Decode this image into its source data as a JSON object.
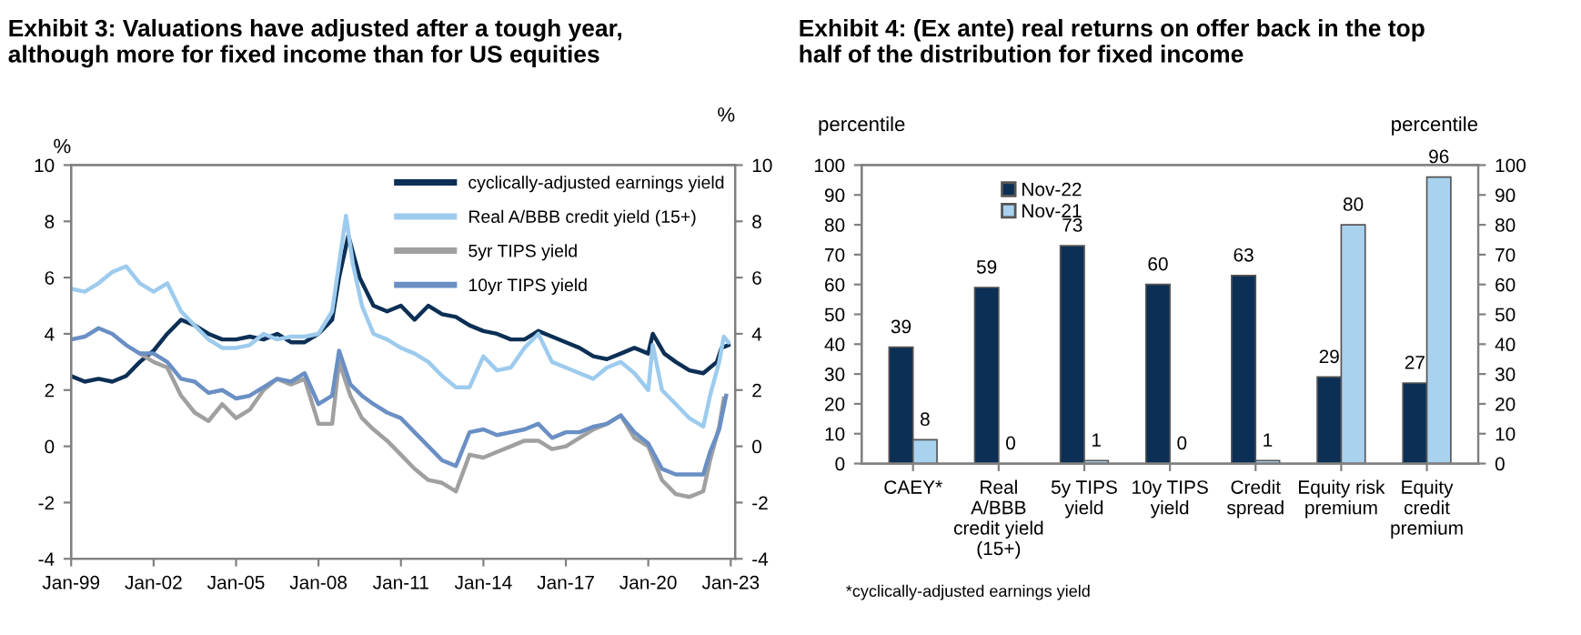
{
  "chart_data": [
    {
      "type": "line",
      "title": "Exhibit 3: Valuations have adjusted after a tough year, although more for fixed income than for US equities",
      "ylabel": "%",
      "y2label": "%",
      "xlim": [
        "1999-01",
        "2023-03"
      ],
      "xticks": [
        {
          "value": "1999-01",
          "label": "Jan-99"
        },
        {
          "value": "2002-01",
          "label": "Jan-02"
        },
        {
          "value": "2005-01",
          "label": "Jan-05"
        },
        {
          "value": "2008-01",
          "label": "Jan-08"
        },
        {
          "value": "2011-01",
          "label": "Jan-11"
        },
        {
          "value": "2014-01",
          "label": "Jan-14"
        },
        {
          "value": "2017-01",
          "label": "Jan-17"
        },
        {
          "value": "2020-01",
          "label": "Jan-20"
        },
        {
          "value": "2023-01",
          "label": "Jan-23"
        }
      ],
      "ylim": [
        -4,
        10
      ],
      "yticks": [
        -4,
        -2,
        0,
        2,
        4,
        6,
        8,
        10
      ],
      "y2lim": [
        -4,
        10
      ],
      "y2ticks": [
        -4,
        -2,
        0,
        2,
        4,
        6,
        8,
        10
      ],
      "grid": false,
      "legend": "top right",
      "line_style": "solid",
      "series": [
        {
          "name": "cyclically-adjusted earnings yield",
          "color": "#0b2f55",
          "x": [
            "1999-01",
            "1999-07",
            "2000-01",
            "2000-07",
            "2001-01",
            "2001-07",
            "2002-01",
            "2002-07",
            "2003-01",
            "2003-07",
            "2004-01",
            "2004-07",
            "2005-01",
            "2005-07",
            "2006-01",
            "2006-07",
            "2007-01",
            "2007-07",
            "2008-01",
            "2008-07",
            "2008-10",
            "2009-02",
            "2009-07",
            "2010-01",
            "2010-07",
            "2011-01",
            "2011-07",
            "2012-01",
            "2012-07",
            "2013-01",
            "2013-07",
            "2014-01",
            "2014-07",
            "2015-01",
            "2015-07",
            "2016-01",
            "2016-07",
            "2017-01",
            "2017-07",
            "2018-01",
            "2018-07",
            "2019-01",
            "2019-07",
            "2020-01",
            "2020-03",
            "2020-08",
            "2021-01",
            "2021-07",
            "2022-01",
            "2022-07",
            "2022-09",
            "2022-12"
          ],
          "values": [
            2.5,
            2.3,
            2.4,
            2.3,
            2.5,
            3.0,
            3.4,
            4.0,
            4.5,
            4.3,
            4.0,
            3.8,
            3.8,
            3.9,
            3.8,
            4.0,
            3.7,
            3.7,
            4.0,
            4.5,
            6.0,
            7.5,
            6.0,
            5.0,
            4.8,
            5.0,
            4.5,
            5.0,
            4.7,
            4.6,
            4.3,
            4.1,
            4.0,
            3.8,
            3.8,
            4.1,
            3.9,
            3.7,
            3.5,
            3.2,
            3.1,
            3.3,
            3.5,
            3.3,
            4.0,
            3.3,
            3.0,
            2.7,
            2.6,
            3.0,
            3.5,
            3.6
          ]
        },
        {
          "name": "Real A/BBB credit yield (15+)",
          "color": "#9dcbee",
          "x": [
            "1999-01",
            "1999-07",
            "2000-01",
            "2000-07",
            "2001-01",
            "2001-07",
            "2002-01",
            "2002-07",
            "2003-01",
            "2003-07",
            "2004-01",
            "2004-07",
            "2005-01",
            "2005-07",
            "2006-01",
            "2006-07",
            "2007-01",
            "2007-07",
            "2008-01",
            "2008-07",
            "2008-10",
            "2009-01",
            "2009-04",
            "2009-08",
            "2010-01",
            "2010-07",
            "2011-01",
            "2011-07",
            "2012-01",
            "2012-07",
            "2013-01",
            "2013-07",
            "2014-01",
            "2014-07",
            "2015-01",
            "2015-07",
            "2016-01",
            "2016-07",
            "2017-01",
            "2017-07",
            "2018-01",
            "2018-07",
            "2019-01",
            "2019-07",
            "2020-01",
            "2020-03",
            "2020-07",
            "2021-01",
            "2021-07",
            "2022-01",
            "2022-04",
            "2022-08",
            "2022-10",
            "2022-12"
          ],
          "values": [
            5.6,
            5.5,
            5.8,
            6.2,
            6.4,
            5.8,
            5.5,
            5.8,
            4.8,
            4.3,
            3.8,
            3.5,
            3.5,
            3.6,
            4.0,
            3.8,
            3.9,
            3.9,
            4.0,
            4.8,
            6.5,
            8.2,
            6.5,
            5.0,
            4.0,
            3.8,
            3.5,
            3.3,
            3.0,
            2.5,
            2.1,
            2.1,
            3.2,
            2.7,
            2.8,
            3.5,
            4.0,
            3.0,
            2.8,
            2.6,
            2.4,
            2.8,
            3.0,
            2.6,
            2.0,
            3.6,
            2.0,
            1.5,
            1.0,
            0.7,
            1.8,
            3.0,
            3.9,
            3.7
          ]
        },
        {
          "name": "5yr TIPS yield",
          "color": "#a0a0a0",
          "x": [
            "2001-07",
            "2002-01",
            "2002-07",
            "2003-01",
            "2003-07",
            "2004-01",
            "2004-07",
            "2005-01",
            "2005-07",
            "2006-01",
            "2006-07",
            "2007-01",
            "2007-07",
            "2008-01",
            "2008-07",
            "2008-10",
            "2009-03",
            "2009-08",
            "2010-01",
            "2010-07",
            "2011-01",
            "2011-07",
            "2012-01",
            "2012-07",
            "2013-01",
            "2013-07",
            "2014-01",
            "2014-07",
            "2015-01",
            "2015-07",
            "2016-01",
            "2016-07",
            "2017-01",
            "2017-07",
            "2018-01",
            "2018-07",
            "2019-01",
            "2019-07",
            "2020-01",
            "2020-07",
            "2021-01",
            "2021-07",
            "2022-01",
            "2022-04",
            "2022-08",
            "2022-10"
          ],
          "values": [
            3.3,
            3.0,
            2.8,
            1.8,
            1.2,
            0.9,
            1.5,
            1.0,
            1.3,
            2.0,
            2.4,
            2.2,
            2.4,
            0.8,
            0.8,
            3.0,
            1.8,
            1.0,
            0.6,
            0.2,
            -0.3,
            -0.8,
            -1.2,
            -1.3,
            -1.6,
            -0.3,
            -0.4,
            -0.2,
            0.0,
            0.2,
            0.2,
            -0.1,
            0.0,
            0.3,
            0.6,
            0.8,
            1.1,
            0.3,
            0.0,
            -1.2,
            -1.7,
            -1.8,
            -1.6,
            -0.5,
            0.7,
            1.7
          ]
        },
        {
          "name": "10yr TIPS yield",
          "color": "#6a8fc4",
          "x": [
            "1999-01",
            "1999-07",
            "2000-01",
            "2000-07",
            "2001-01",
            "2001-07",
            "2002-01",
            "2002-07",
            "2003-01",
            "2003-07",
            "2004-01",
            "2004-07",
            "2005-01",
            "2005-07",
            "2006-01",
            "2006-07",
            "2007-01",
            "2007-07",
            "2008-01",
            "2008-07",
            "2008-10",
            "2009-03",
            "2009-08",
            "2010-01",
            "2010-07",
            "2011-01",
            "2011-07",
            "2012-01",
            "2012-07",
            "2013-01",
            "2013-07",
            "2014-01",
            "2014-07",
            "2015-01",
            "2015-07",
            "2016-01",
            "2016-07",
            "2017-01",
            "2017-07",
            "2018-01",
            "2018-07",
            "2019-01",
            "2019-07",
            "2020-01",
            "2020-07",
            "2021-01",
            "2021-07",
            "2022-01",
            "2022-04",
            "2022-08",
            "2022-11"
          ],
          "values": [
            3.8,
            3.9,
            4.2,
            4.0,
            3.6,
            3.3,
            3.3,
            3.0,
            2.4,
            2.3,
            1.9,
            2.0,
            1.7,
            1.8,
            2.1,
            2.4,
            2.3,
            2.6,
            1.5,
            1.8,
            3.4,
            2.2,
            1.8,
            1.5,
            1.2,
            1.0,
            0.5,
            0.0,
            -0.5,
            -0.7,
            0.5,
            0.6,
            0.4,
            0.5,
            0.6,
            0.8,
            0.3,
            0.5,
            0.5,
            0.7,
            0.8,
            1.1,
            0.5,
            0.1,
            -0.8,
            -1.0,
            -1.0,
            -1.0,
            -0.2,
            0.6,
            1.8
          ]
        }
      ]
    },
    {
      "type": "bar",
      "title": "Exhibit 4: (Ex ante) real returns on offer back in the top half of the distribution for fixed income",
      "ylabel": "percentile",
      "y2label": "percentile",
      "categories": [
        "CAEY*",
        "Real\nA/BBB\ncredit yield\n(15+)",
        "5y TIPS\nyield",
        "10y TIPS\nyield",
        "Credit\nspread",
        "Equity risk\npremium",
        "Equity\ncredit\npremium"
      ],
      "ylim": [
        0,
        100
      ],
      "yticks": [
        0,
        10,
        20,
        30,
        40,
        50,
        60,
        70,
        80,
        90,
        100
      ],
      "y2lim": [
        0,
        100
      ],
      "y2ticks": [
        0,
        10,
        20,
        30,
        40,
        50,
        60,
        70,
        80,
        90,
        100
      ],
      "grid": false,
      "legend": "top left",
      "data_labels": true,
      "annotations": [
        "*cyclically-adjusted earnings yield"
      ],
      "series": [
        {
          "name": "Nov-22",
          "color": "#0b2f55",
          "values": [
            39,
            59,
            73,
            60,
            63,
            29,
            27
          ]
        },
        {
          "name": "Nov-21",
          "color": "#a9d2ef",
          "values": [
            8,
            0,
            1,
            0,
            1,
            80,
            96
          ]
        }
      ]
    }
  ]
}
